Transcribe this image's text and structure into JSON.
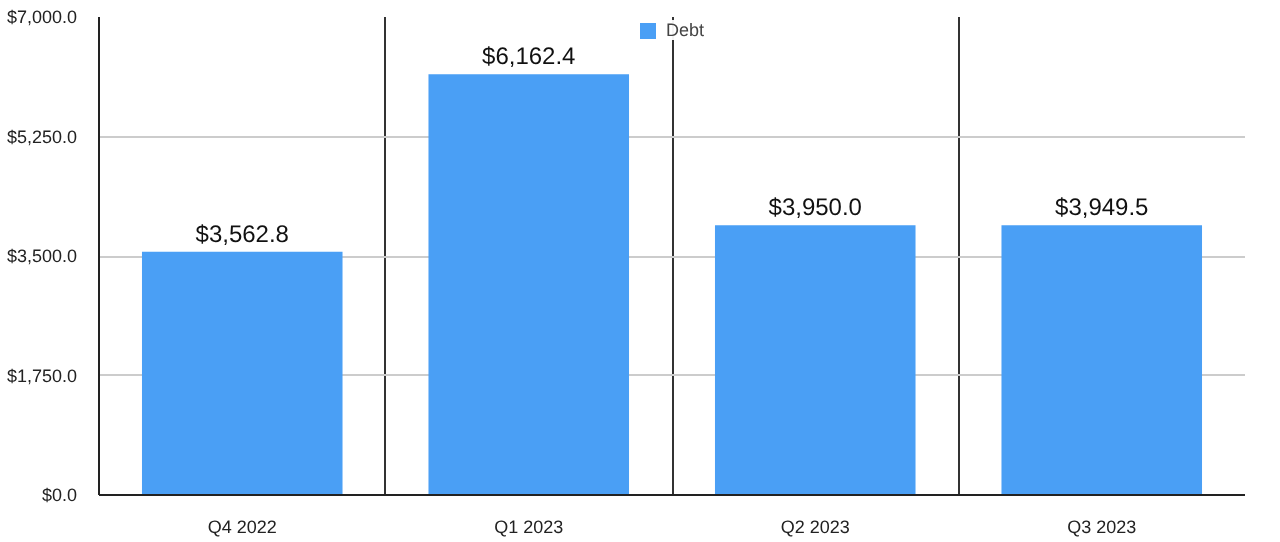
{
  "chart_data": {
    "type": "bar",
    "categories": [
      "Q4 2022",
      "Q1 2023",
      "Q2 2023",
      "Q3 2023"
    ],
    "series": [
      {
        "name": "Debt",
        "color": "#4a9ff5",
        "values": [
          3562.8,
          6162.4,
          3950.0,
          3949.5
        ],
        "value_labels": [
          "$3,562.8",
          "$6,162.4",
          "$3,950.0",
          "$3,949.5"
        ]
      }
    ],
    "ylim": [
      0,
      7000
    ],
    "yticks": [
      {
        "value": 0,
        "label": "$0.0"
      },
      {
        "value": 1750,
        "label": "$1,750.0"
      },
      {
        "value": 3500,
        "label": "$3,500.0"
      },
      {
        "value": 5250,
        "label": "$5,250.0"
      },
      {
        "value": 7000,
        "label": "$7,000.0"
      }
    ],
    "grid": true,
    "legend": "top"
  }
}
